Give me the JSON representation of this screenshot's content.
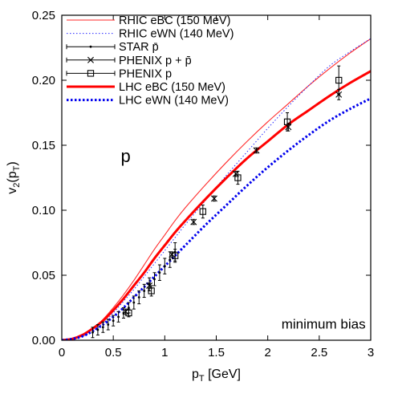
{
  "chart_data": {
    "type": "line",
    "xlabel": "p",
    "xlabel_sub": "T",
    "xlabel_unit": " [GeV]",
    "ylabel": "v",
    "ylabel_sub": "2",
    "ylabel_arg_open": "(p",
    "ylabel_arg_sub": "T",
    "ylabel_arg_close": ")",
    "xlim": [
      0,
      3
    ],
    "ylim": [
      0,
      0.25
    ],
    "x_ticks": [
      0,
      0.5,
      1,
      1.5,
      2,
      2.5,
      3
    ],
    "x_tick_labels": [
      "0",
      "0.5",
      "1",
      "1.5",
      "2",
      "2.5",
      "3"
    ],
    "y_ticks": [
      0,
      0.05,
      0.1,
      0.15,
      0.2,
      0.25
    ],
    "y_tick_labels": [
      "0.00",
      "0.05",
      "0.10",
      "0.15",
      "0.20",
      "0.25"
    ],
    "grid": false,
    "legend_position": "top-left",
    "annotations": [
      {
        "text": "p",
        "x": 0.62,
        "y": 0.137
      },
      {
        "text": "minimum bias",
        "x": 2.95,
        "y": 0.009
      }
    ],
    "series": [
      {
        "name": "RHIC eBC (150 MeV)",
        "kind": "line",
        "style": "thin-solid",
        "color": "#ff2a2a",
        "x": [
          0,
          0.1,
          0.2,
          0.3,
          0.4,
          0.5,
          0.6,
          0.7,
          0.8,
          0.9,
          1.0,
          1.1,
          1.2,
          1.4,
          1.6,
          1.8,
          2.0,
          2.2,
          2.4,
          2.6,
          2.8,
          3.0
        ],
        "y": [
          0,
          0.001,
          0.004,
          0.009,
          0.016,
          0.025,
          0.035,
          0.046,
          0.058,
          0.07,
          0.081,
          0.092,
          0.102,
          0.12,
          0.137,
          0.153,
          0.168,
          0.182,
          0.196,
          0.209,
          0.221,
          0.232
        ]
      },
      {
        "name": "RHIC eWN (140 MeV)",
        "kind": "line",
        "style": "thin-dotted",
        "color": "#2a2aff",
        "x": [
          0,
          0.1,
          0.2,
          0.3,
          0.4,
          0.5,
          0.6,
          0.7,
          0.8,
          0.9,
          1.0,
          1.1,
          1.2,
          1.4,
          1.6,
          1.8,
          2.0,
          2.2,
          2.4,
          2.6,
          2.8,
          3.0
        ],
        "y": [
          0,
          0.001,
          0.003,
          0.007,
          0.013,
          0.021,
          0.03,
          0.039,
          0.049,
          0.059,
          0.069,
          0.079,
          0.089,
          0.108,
          0.127,
          0.145,
          0.163,
          0.18,
          0.196,
          0.211,
          0.222,
          0.232
        ]
      },
      {
        "name": "STAR p̄",
        "kind": "points",
        "marker": "dot",
        "color": "#000000",
        "x": [
          0.3,
          0.35,
          0.4,
          0.45,
          0.5,
          0.55,
          0.6,
          0.65,
          0.7,
          0.75,
          0.8,
          0.85,
          0.9,
          0.95,
          1.0,
          1.05,
          1.1
        ],
        "y": [
          0.006,
          0.008,
          0.01,
          0.012,
          0.015,
          0.018,
          0.021,
          0.025,
          0.029,
          0.033,
          0.038,
          0.043,
          0.047,
          0.052,
          0.057,
          0.062,
          0.068
        ],
        "err": [
          0.004,
          0.004,
          0.004,
          0.004,
          0.004,
          0.004,
          0.004,
          0.004,
          0.005,
          0.005,
          0.005,
          0.005,
          0.005,
          0.006,
          0.006,
          0.006,
          0.007
        ]
      },
      {
        "name": "PHENIX p + p̄",
        "kind": "points",
        "marker": "cross",
        "color": "#000000",
        "x": [
          0.62,
          0.85,
          1.07,
          1.28,
          1.48,
          1.69,
          1.89,
          2.2,
          2.69
        ],
        "y": [
          0.022,
          0.042,
          0.066,
          0.091,
          0.109,
          0.128,
          0.146,
          0.164,
          0.189
        ],
        "err": [
          0.002,
          0.002,
          0.002,
          0.002,
          0.002,
          0.002,
          0.002,
          0.003,
          0.004
        ]
      },
      {
        "name": "PHENIX p",
        "kind": "points",
        "marker": "square",
        "color": "#000000",
        "x": [
          0.65,
          0.87,
          1.1,
          1.37,
          1.71,
          2.19,
          2.69
        ],
        "y": [
          0.021,
          0.038,
          0.065,
          0.099,
          0.125,
          0.168,
          0.2
        ],
        "err": [
          0.003,
          0.004,
          0.005,
          0.005,
          0.005,
          0.007,
          0.011
        ]
      },
      {
        "name": "LHC eBC (150 MeV)",
        "kind": "line",
        "style": "thick-solid",
        "color": "#ff0000",
        "x": [
          0,
          0.1,
          0.2,
          0.3,
          0.4,
          0.5,
          0.6,
          0.7,
          0.8,
          0.9,
          1.0,
          1.1,
          1.2,
          1.4,
          1.6,
          1.8,
          2.0,
          2.2,
          2.4,
          2.6,
          2.8,
          3.0
        ],
        "y": [
          0,
          0.001,
          0.004,
          0.009,
          0.015,
          0.023,
          0.032,
          0.042,
          0.052,
          0.063,
          0.073,
          0.083,
          0.092,
          0.109,
          0.125,
          0.14,
          0.153,
          0.166,
          0.177,
          0.188,
          0.198,
          0.207
        ]
      },
      {
        "name": "LHC eWN (140 MeV)",
        "kind": "line",
        "style": "thick-dotted",
        "color": "#0000ee",
        "x": [
          0,
          0.1,
          0.2,
          0.3,
          0.4,
          0.5,
          0.6,
          0.7,
          0.8,
          0.9,
          1.0,
          1.1,
          1.2,
          1.4,
          1.6,
          1.8,
          2.0,
          2.2,
          2.4,
          2.6,
          2.8,
          3.0
        ],
        "y": [
          0,
          0.001,
          0.003,
          0.007,
          0.012,
          0.018,
          0.025,
          0.033,
          0.041,
          0.049,
          0.057,
          0.065,
          0.073,
          0.089,
          0.104,
          0.119,
          0.133,
          0.146,
          0.158,
          0.169,
          0.178,
          0.186
        ]
      }
    ]
  }
}
